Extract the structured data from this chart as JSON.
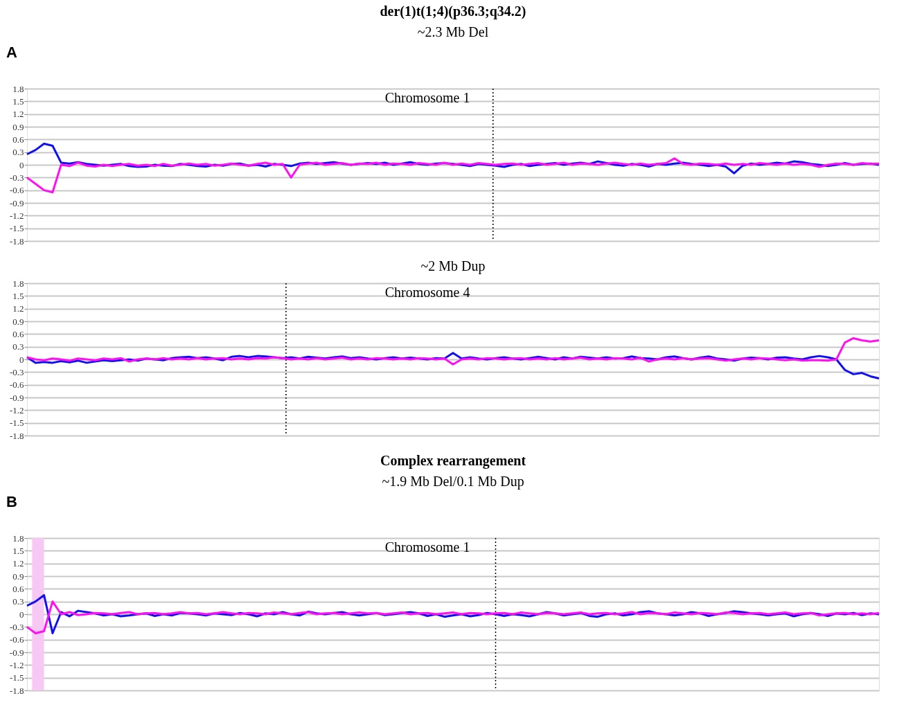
{
  "chart_data": [
    {
      "type": "line",
      "title": "der(1)t(1;4)(p36.3;q34.2)",
      "subtitle": "~2.3 Mb Del",
      "annotations": [
        "A",
        "Chromosome 1"
      ],
      "categories": [
        null,
        null,
        null,
        null,
        null,
        null,
        null,
        null,
        null,
        null,
        null,
        null,
        null,
        null,
        null,
        null,
        null,
        null,
        null,
        null,
        null,
        null,
        null,
        null,
        null,
        null,
        null,
        null,
        null,
        null,
        null,
        null,
        null,
        null,
        null,
        null,
        null,
        null,
        null,
        null,
        null,
        null,
        null,
        null,
        null,
        null,
        null,
        null,
        null,
        null,
        null,
        null,
        null,
        null,
        null,
        null,
        null,
        null,
        null,
        null,
        null,
        null,
        null,
        null,
        null,
        null,
        null,
        null,
        null,
        null,
        null,
        null,
        null,
        null,
        null,
        null,
        null,
        null,
        null,
        null,
        null,
        null,
        null,
        null,
        null,
        null,
        null,
        null,
        null,
        null,
        null,
        null,
        null,
        null,
        null,
        null,
        null,
        null,
        null,
        null,
        null
      ],
      "ylim": [
        -1.8,
        1.8
      ],
      "yticks": [
        1.8,
        1.5,
        1.2,
        0.9,
        0.6,
        0.3,
        0,
        -0.3,
        -0.6,
        -0.9,
        -1.2,
        -1.5,
        -1.8
      ],
      "grid": "y",
      "tick_labels": "y",
      "legend": false,
      "marker": "none",
      "line_style": "solid",
      "series": [
        {
          "color": "#1010f0",
          "values": [
            0.25,
            0.35,
            0.5,
            0.45,
            0.05,
            0.03,
            0.06,
            0.02,
            0.0,
            -0.02,
            0.0,
            0.02,
            -0.03,
            -0.05,
            -0.04,
            0.0,
            -0.02,
            -0.03,
            0.02,
            0.0,
            -0.03,
            -0.04,
            0.0,
            -0.02,
            0.02,
            0.03,
            -0.02,
            0.0,
            -0.04,
            0.02,
            0.0,
            -0.03,
            0.03,
            0.05,
            0.02,
            0.04,
            0.06,
            0.03,
            0.0,
            0.02,
            0.04,
            0.02,
            0.05,
            0.0,
            0.03,
            0.06,
            0.02,
            0.0,
            0.03,
            0.04,
            0.02,
            0.0,
            -0.03,
            0.02,
            0.0,
            -0.02,
            -0.05,
            0.0,
            0.02,
            -0.03,
            0.0,
            0.02,
            0.04,
            0.0,
            0.03,
            0.05,
            0.02,
            0.08,
            0.04,
            0.0,
            -0.02,
            0.02,
            0.0,
            -0.04,
            0.02,
            0.0,
            0.03,
            0.05,
            0.02,
            0.0,
            -0.03,
            0.0,
            -0.04,
            -0.2,
            -0.02,
            0.03,
            0.0,
            0.02,
            0.05,
            0.03,
            0.08,
            0.06,
            0.02,
            0.0,
            -0.03,
            0.0,
            0.04,
            0.0,
            0.02,
            0.03,
            0.0
          ]
        },
        {
          "color": "#ff10f0",
          "values": [
            -0.3,
            -0.45,
            -0.6,
            -0.65,
            0.0,
            -0.03,
            0.05,
            -0.02,
            -0.04,
            0.0,
            -0.03,
            0.0,
            0.02,
            -0.02,
            0.0,
            -0.03,
            0.02,
            -0.02,
            0.0,
            0.03,
            0.0,
            0.02,
            -0.02,
            0.0,
            0.03,
            0.0,
            -0.02,
            0.02,
            0.05,
            0.0,
            0.02,
            -0.3,
            0.0,
            0.03,
            0.05,
            0.0,
            0.02,
            0.04,
            0.0,
            0.03,
            0.02,
            0.05,
            0.0,
            0.03,
            0.02,
            0.0,
            0.04,
            0.02,
            0.0,
            0.05,
            0.0,
            0.03,
            0.0,
            0.04,
            0.02,
            0.0,
            0.02,
            0.03,
            0.0,
            0.02,
            0.04,
            0.0,
            0.02,
            0.05,
            0.0,
            0.03,
            0.02,
            0.0,
            0.03,
            0.05,
            0.02,
            0.0,
            0.03,
            0.0,
            0.02,
            0.04,
            0.15,
            0.02,
            0.0,
            0.03,
            0.02,
            0.0,
            0.03,
            0.0,
            0.02,
            0.0,
            0.04,
            0.02,
            0.0,
            0.03,
            0.0,
            0.02,
            0.0,
            -0.05,
            0.0,
            0.03,
            0.02,
            0.0,
            0.04,
            0.02,
            0.03
          ]
        }
      ]
    },
    {
      "type": "line",
      "title": "~2 Mb Dup",
      "annotations": [
        "Chromosome 4"
      ],
      "categories": [
        null,
        null,
        null,
        null,
        null,
        null,
        null,
        null,
        null,
        null,
        null,
        null,
        null,
        null,
        null,
        null,
        null,
        null,
        null,
        null,
        null,
        null,
        null,
        null,
        null,
        null,
        null,
        null,
        null,
        null,
        null,
        null,
        null,
        null,
        null,
        null,
        null,
        null,
        null,
        null,
        null,
        null,
        null,
        null,
        null,
        null,
        null,
        null,
        null,
        null,
        null,
        null,
        null,
        null,
        null,
        null,
        null,
        null,
        null,
        null,
        null,
        null,
        null,
        null,
        null,
        null,
        null,
        null,
        null,
        null,
        null,
        null,
        null,
        null,
        null,
        null,
        null,
        null,
        null,
        null,
        null,
        null,
        null,
        null,
        null,
        null,
        null,
        null,
        null,
        null,
        null,
        null,
        null,
        null,
        null,
        null,
        null,
        null,
        null,
        null,
        null
      ],
      "ylim": [
        -1.8,
        1.8
      ],
      "yticks": [
        1.8,
        1.5,
        1.2,
        0.9,
        0.6,
        0.3,
        0,
        -0.3,
        -0.6,
        -0.9,
        -1.2,
        -1.5,
        -1.8
      ],
      "grid": "y",
      "tick_labels": "y",
      "legend": false,
      "marker": "none",
      "line_style": "solid",
      "series": [
        {
          "color": "#1010f0",
          "values": [
            0.05,
            -0.08,
            -0.06,
            -0.08,
            -0.04,
            -0.07,
            -0.03,
            -0.08,
            -0.05,
            -0.02,
            -0.04,
            -0.02,
            0.0,
            -0.03,
            0.02,
            0.0,
            -0.02,
            0.03,
            0.05,
            0.06,
            0.03,
            0.05,
            0.02,
            -0.02,
            0.06,
            0.08,
            0.05,
            0.08,
            0.07,
            0.05,
            0.03,
            0.05,
            0.02,
            0.06,
            0.04,
            0.02,
            0.05,
            0.07,
            0.03,
            0.05,
            0.02,
            0.0,
            0.03,
            0.05,
            0.02,
            0.04,
            0.02,
            0.0,
            0.03,
            0.02,
            0.15,
            0.02,
            0.05,
            0.02,
            0.0,
            0.03,
            0.05,
            0.02,
            0.0,
            0.03,
            0.06,
            0.03,
            0.0,
            0.05,
            0.02,
            0.06,
            0.04,
            0.02,
            0.05,
            0.02,
            0.03,
            0.07,
            0.03,
            0.02,
            0.0,
            0.05,
            0.07,
            0.03,
            0.0,
            0.04,
            0.07,
            0.02,
            0.0,
            -0.03,
            0.02,
            0.04,
            0.03,
            0.0,
            0.04,
            0.05,
            0.02,
            0.0,
            0.05,
            0.08,
            0.05,
            0.0,
            -0.25,
            -0.35,
            -0.32,
            -0.4,
            -0.45
          ]
        },
        {
          "color": "#ff10f0",
          "values": [
            0.05,
            0.0,
            -0.02,
            0.02,
            0.0,
            -0.03,
            0.02,
            0.0,
            -0.02,
            0.02,
            0.0,
            0.03,
            -0.05,
            0.0,
            0.02,
            0.0,
            0.03,
            0.0,
            0.02,
            0.0,
            0.03,
            0.0,
            0.02,
            0.03,
            0.0,
            0.02,
            0.0,
            0.03,
            0.02,
            0.05,
            0.03,
            0.0,
            0.02,
            0.0,
            0.03,
            0.0,
            0.02,
            0.04,
            0.0,
            0.02,
            0.0,
            0.03,
            0.02,
            0.0,
            0.02,
            0.0,
            0.03,
            0.02,
            0.0,
            0.02,
            -0.12,
            0.0,
            0.02,
            0.0,
            0.03,
            0.02,
            0.0,
            0.02,
            0.03,
            0.0,
            0.02,
            0.0,
            0.03,
            0.0,
            0.02,
            0.04,
            0.0,
            0.02,
            0.0,
            0.03,
            0.02,
            0.0,
            0.04,
            -0.05,
            0.0,
            0.02,
            0.0,
            0.03,
            0.0,
            0.02,
            0.03,
            0.0,
            -0.03,
            0.0,
            0.02,
            0.0,
            0.03,
            0.02,
            0.0,
            -0.02,
            0.0,
            -0.03,
            -0.02,
            -0.02,
            -0.03,
            0.0,
            0.4,
            0.5,
            0.45,
            0.42,
            0.45
          ]
        }
      ]
    },
    {
      "type": "line",
      "title": "Complex rearrangement",
      "subtitle": "~1.9 Mb Del/0.1 Mb Dup",
      "annotations": [
        "B",
        "Chromosome 1"
      ],
      "categories": [
        null,
        null,
        null,
        null,
        null,
        null,
        null,
        null,
        null,
        null,
        null,
        null,
        null,
        null,
        null,
        null,
        null,
        null,
        null,
        null,
        null,
        null,
        null,
        null,
        null,
        null,
        null,
        null,
        null,
        null,
        null,
        null,
        null,
        null,
        null,
        null,
        null,
        null,
        null,
        null,
        null,
        null,
        null,
        null,
        null,
        null,
        null,
        null,
        null,
        null,
        null,
        null,
        null,
        null,
        null,
        null,
        null,
        null,
        null,
        null,
        null,
        null,
        null,
        null,
        null,
        null,
        null,
        null,
        null,
        null,
        null,
        null,
        null,
        null,
        null,
        null,
        null,
        null,
        null,
        null,
        null,
        null,
        null,
        null,
        null,
        null,
        null,
        null,
        null,
        null,
        null,
        null,
        null,
        null,
        null,
        null,
        null,
        null,
        null,
        null,
        null
      ],
      "ylim": [
        -1.8,
        1.8
      ],
      "yticks": [
        1.8,
        1.5,
        1.2,
        0.9,
        0.6,
        0.3,
        0,
        -0.3,
        -0.6,
        -0.9,
        -1.2,
        -1.5,
        -1.8
      ],
      "grid": "y",
      "tick_labels": "y",
      "legend": false,
      "marker": "none",
      "line_style": "solid",
      "series": [
        {
          "color": "#1010f0",
          "values": [
            0.2,
            0.3,
            0.45,
            -0.45,
            0.05,
            -0.05,
            0.08,
            0.05,
            0.02,
            -0.03,
            0.0,
            -0.05,
            -0.03,
            0.0,
            0.02,
            -0.04,
            0.0,
            -0.03,
            0.03,
            0.02,
            0.0,
            -0.03,
            0.02,
            0.0,
            -0.02,
            0.03,
            0.0,
            -0.05,
            0.02,
            0.0,
            0.05,
            0.0,
            -0.03,
            0.06,
            0.02,
            0.0,
            0.03,
            0.05,
            0.0,
            -0.03,
            0.0,
            0.03,
            -0.02,
            0.0,
            0.03,
            0.05,
            0.02,
            -0.04,
            0.0,
            -0.06,
            -0.03,
            0.0,
            -0.05,
            -0.02,
            0.03,
            0.0,
            -0.04,
            0.0,
            -0.02,
            -0.05,
            0.0,
            0.05,
            0.02,
            -0.03,
            0.0,
            0.03,
            -0.04,
            -0.06,
            0.0,
            0.02,
            -0.03,
            0.0,
            0.05,
            0.07,
            0.02,
            0.0,
            -0.03,
            0.0,
            0.05,
            0.02,
            -0.04,
            0.0,
            0.03,
            0.07,
            0.05,
            0.02,
            0.0,
            -0.03,
            0.0,
            0.02,
            -0.05,
            0.0,
            0.03,
            0.0,
            -0.04,
            0.02,
            0.0,
            0.03,
            -0.02,
            0.02,
            0.0
          ]
        },
        {
          "color": "#ff10f0",
          "values": [
            -0.3,
            -0.45,
            -0.4,
            0.3,
            0.0,
            0.05,
            -0.02,
            0.0,
            0.03,
            0.02,
            0.0,
            0.03,
            0.05,
            0.0,
            0.02,
            0.03,
            0.0,
            0.02,
            0.05,
            0.02,
            0.03,
            0.0,
            0.02,
            0.05,
            0.02,
            0.0,
            0.03,
            0.02,
            0.0,
            0.04,
            0.02,
            0.0,
            0.03,
            0.05,
            0.0,
            0.02,
            0.03,
            0.0,
            0.02,
            0.04,
            0.02,
            0.03,
            0.0,
            0.02,
            0.04,
            0.0,
            0.02,
            0.03,
            0.0,
            0.02,
            0.04,
            0.0,
            0.03,
            0.02,
            0.0,
            0.02,
            0.03,
            0.0,
            0.04,
            0.02,
            0.0,
            0.03,
            0.02,
            0.0,
            0.02,
            0.04,
            0.0,
            0.02,
            0.03,
            0.0,
            0.02,
            0.05,
            0.0,
            0.03,
            0.02,
            0.0,
            0.04,
            0.02,
            0.0,
            0.03,
            0.02,
            0.0,
            0.04,
            0.03,
            0.0,
            0.02,
            0.03,
            0.0,
            0.02,
            0.04,
            0.0,
            0.02,
            0.03,
            -0.03,
            0.0,
            0.02,
            0.03,
            0.0,
            0.02,
            0.0,
            0.03
          ]
        }
      ]
    }
  ]
}
